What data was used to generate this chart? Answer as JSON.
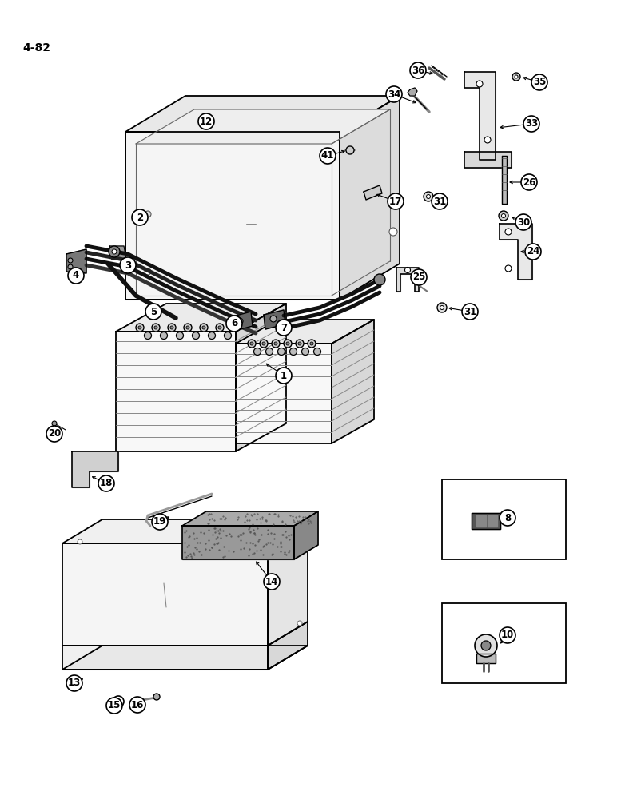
{
  "page_label": "4-82",
  "bg": "#ffffff",
  "black": "#000000",
  "gray1": "#f0f0f0",
  "gray2": "#e0e0e0",
  "gray3": "#cccccc",
  "gray4": "#aaaaaa",
  "dark": "#444444",
  "wire_color": "#111111"
}
